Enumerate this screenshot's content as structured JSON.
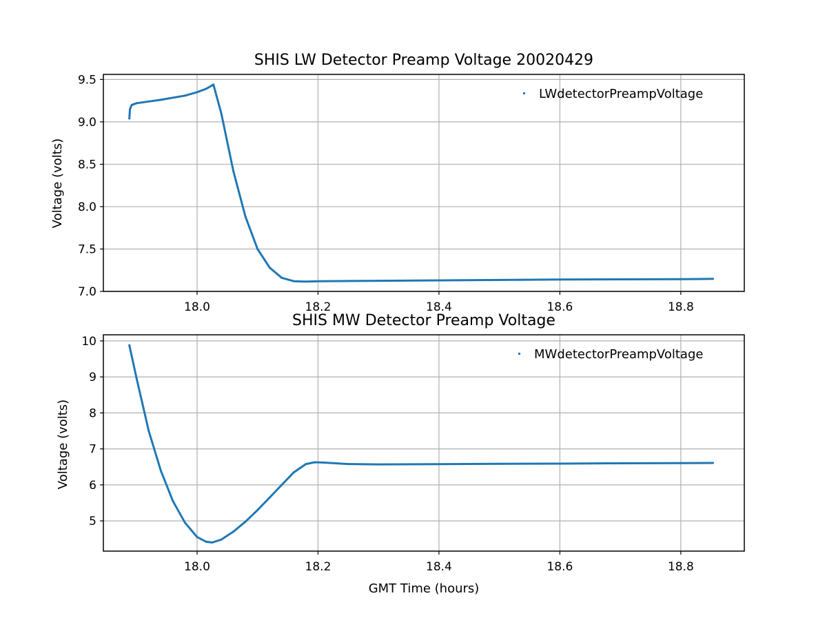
{
  "chart_data": [
    {
      "type": "line",
      "title": "SHIS LW Detector Preamp Voltage 20020429",
      "xlabel": "",
      "ylabel": "Voltage (volts)",
      "xlim": [
        17.845,
        18.905
      ],
      "ylim": [
        7.0,
        9.56
      ],
      "xticks": [
        18.0,
        18.2,
        18.4,
        18.6,
        18.8
      ],
      "xtick_labels": [
        "18.0",
        "18.2",
        "18.4",
        "18.6",
        "18.8"
      ],
      "yticks": [
        7.0,
        7.5,
        8.0,
        8.5,
        9.0,
        9.5
      ],
      "ytick_labels": [
        "7.0",
        "7.5",
        "8.0",
        "8.5",
        "9.0",
        "9.5"
      ],
      "grid": true,
      "legend_position": "top-right",
      "series": [
        {
          "name": "LWdetectorPreampVoltage",
          "color": "#1f77b4",
          "marker": "point",
          "x": [
            17.888,
            17.889,
            17.892,
            17.9,
            17.94,
            17.98,
            18.0,
            18.015,
            18.027,
            18.04,
            18.06,
            18.08,
            18.1,
            18.12,
            18.14,
            18.16,
            18.18,
            18.2,
            18.3,
            18.4,
            18.5,
            18.6,
            18.7,
            18.8,
            18.853
          ],
          "y": [
            9.04,
            9.15,
            9.2,
            9.22,
            9.26,
            9.31,
            9.35,
            9.39,
            9.44,
            9.1,
            8.42,
            7.88,
            7.5,
            7.28,
            7.16,
            7.12,
            7.115,
            7.12,
            7.125,
            7.13,
            7.135,
            7.14,
            7.142,
            7.145,
            7.148
          ]
        }
      ]
    },
    {
      "type": "line",
      "title": "SHIS MW Detector Preamp Voltage",
      "xlabel": "GMT Time (hours)",
      "ylabel": "Voltage (volts)",
      "xlim": [
        17.845,
        18.905
      ],
      "ylim": [
        4.16,
        10.17
      ],
      "xticks": [
        18.0,
        18.2,
        18.4,
        18.6,
        18.8
      ],
      "xtick_labels": [
        "18.0",
        "18.2",
        "18.4",
        "18.6",
        "18.8"
      ],
      "yticks": [
        5,
        6,
        7,
        8,
        9,
        10
      ],
      "ytick_labels": [
        "5",
        "6",
        "7",
        "8",
        "9",
        "10"
      ],
      "grid": true,
      "legend_position": "top-right",
      "series": [
        {
          "name": "MWdetectorPreampVoltage",
          "color": "#1f77b4",
          "marker": "point",
          "x": [
            17.888,
            17.9,
            17.92,
            17.94,
            17.96,
            17.98,
            18.0,
            18.015,
            18.025,
            18.04,
            18.06,
            18.08,
            18.1,
            18.12,
            18.14,
            18.16,
            18.18,
            18.195,
            18.21,
            18.25,
            18.3,
            18.4,
            18.5,
            18.6,
            18.7,
            18.8,
            18.853
          ],
          "y": [
            9.88,
            8.95,
            7.5,
            6.4,
            5.55,
            4.95,
            4.55,
            4.42,
            4.4,
            4.48,
            4.7,
            4.98,
            5.3,
            5.65,
            6.0,
            6.35,
            6.58,
            6.63,
            6.62,
            6.58,
            6.57,
            6.575,
            6.585,
            6.59,
            6.6,
            6.605,
            6.61
          ]
        }
      ]
    }
  ]
}
